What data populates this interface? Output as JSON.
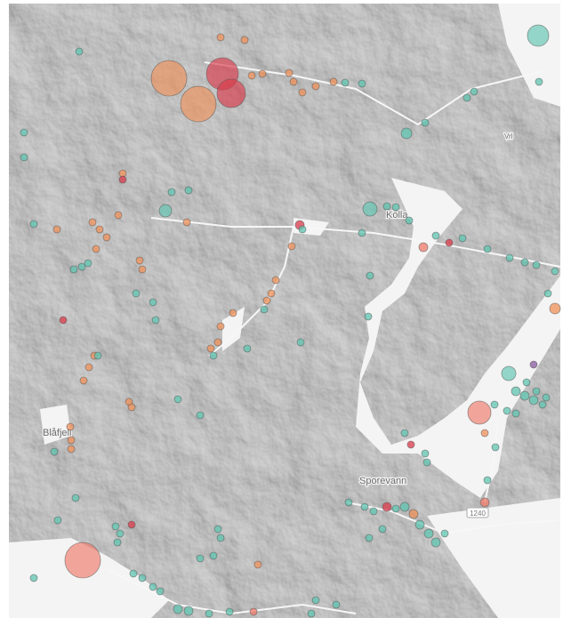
{
  "map": {
    "labels": {
      "kolla": "Kolla",
      "blafjell": "Blåfjell",
      "sporevann": "Sporevann",
      "road": "1240",
      "vrl": "Vrl"
    }
  }
}
